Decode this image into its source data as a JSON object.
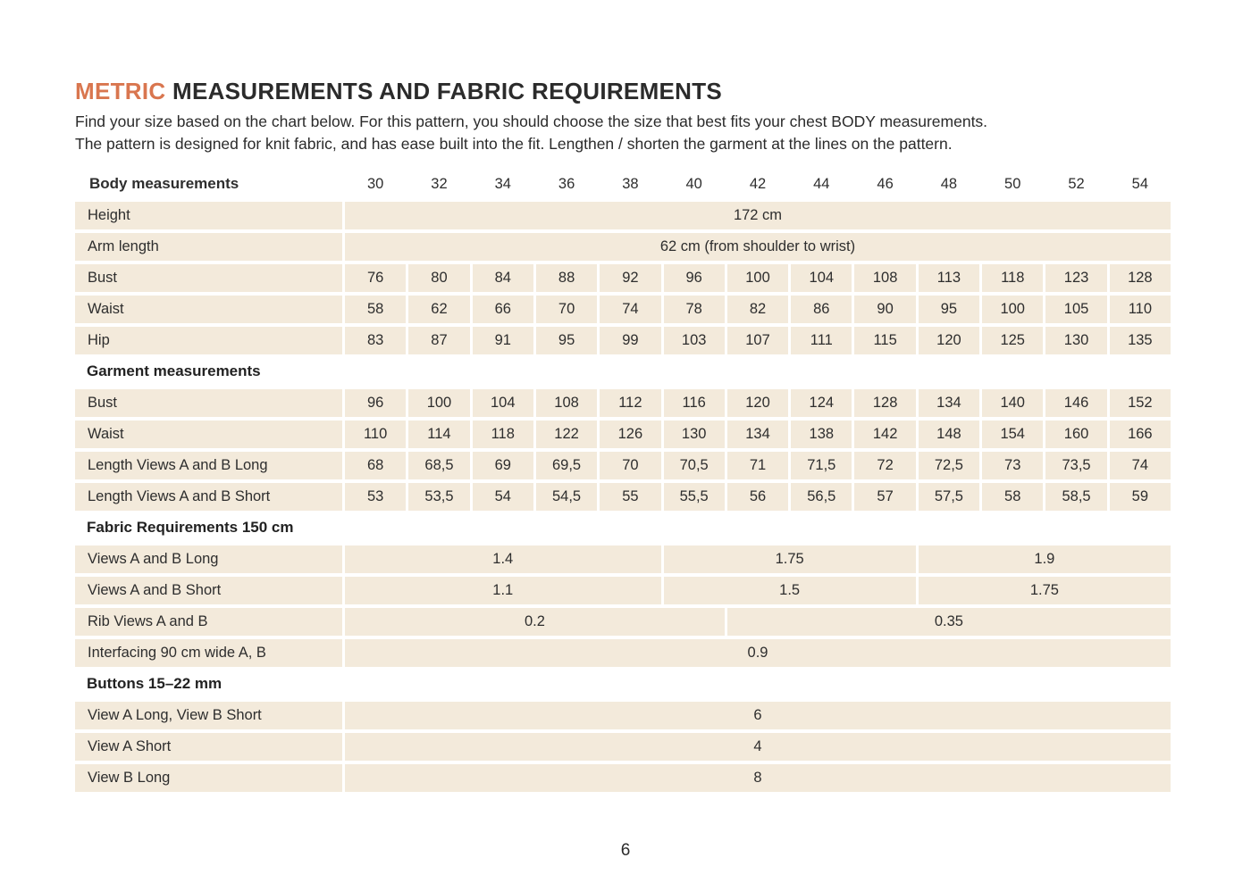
{
  "page": {
    "title_accent": "METRIC",
    "title_rest": " MEASUREMENTS AND FABRIC REQUIREMENTS",
    "intro_line1": "Find your size based on the chart below. For this pattern, you should choose the size that best fits your chest BODY measurements.",
    "intro_line2": "The pattern is designed for knit fabric, and has ease built into the fit. Lengthen / shorten the garment at the lines on the pattern.",
    "page_number": "6"
  },
  "colors": {
    "accent_orange": "#D9764F",
    "cell_beige": "#F3EADB",
    "text_dark": "#2D2D2D"
  },
  "table": {
    "sizes_header_label": "Body measurements",
    "sizes": [
      "30",
      "32",
      "34",
      "36",
      "38",
      "40",
      "42",
      "44",
      "46",
      "48",
      "50",
      "52",
      "54"
    ],
    "rows": [
      {
        "type": "span",
        "label": "Height",
        "cells": [
          {
            "text": "172 cm",
            "span": 13
          }
        ]
      },
      {
        "type": "span",
        "label": "Arm length",
        "cells": [
          {
            "text": "62 cm (from shoulder to wrist)",
            "span": 13
          }
        ]
      },
      {
        "type": "values",
        "label": "Bust",
        "values": [
          "76",
          "80",
          "84",
          "88",
          "92",
          "96",
          "100",
          "104",
          "108",
          "113",
          "118",
          "123",
          "128"
        ]
      },
      {
        "type": "values",
        "label": "Waist",
        "values": [
          "58",
          "62",
          "66",
          "70",
          "74",
          "78",
          "82",
          "86",
          "90",
          "95",
          "100",
          "105",
          "110"
        ]
      },
      {
        "type": "values",
        "label": "Hip",
        "values": [
          "83",
          "87",
          "91",
          "95",
          "99",
          "103",
          "107",
          "111",
          "115",
          "120",
          "125",
          "130",
          "135"
        ]
      },
      {
        "type": "section",
        "label": "Garment measurements"
      },
      {
        "type": "values",
        "label": "Bust",
        "values": [
          "96",
          "100",
          "104",
          "108",
          "112",
          "116",
          "120",
          "124",
          "128",
          "134",
          "140",
          "146",
          "152"
        ]
      },
      {
        "type": "values",
        "label": "Waist",
        "values": [
          "110",
          "114",
          "118",
          "122",
          "126",
          "130",
          "134",
          "138",
          "142",
          "148",
          "154",
          "160",
          "166"
        ]
      },
      {
        "type": "values",
        "label": "Length Views A and B Long",
        "values": [
          "68",
          "68,5",
          "69",
          "69,5",
          "70",
          "70,5",
          "71",
          "71,5",
          "72",
          "72,5",
          "73",
          "73,5",
          "74"
        ]
      },
      {
        "type": "values",
        "label": "Length Views A and B Short",
        "values": [
          "53",
          "53,5",
          "54",
          "54,5",
          "55",
          "55,5",
          "56",
          "56,5",
          "57",
          "57,5",
          "58",
          "58,5",
          "59"
        ]
      },
      {
        "type": "section",
        "label": "Fabric Requirements 150 cm"
      },
      {
        "type": "span",
        "label": "Views A and B Long",
        "cells": [
          {
            "text": "1.4",
            "span": 5
          },
          {
            "text": "1.75",
            "span": 4
          },
          {
            "text": "1.9",
            "span": 4
          }
        ]
      },
      {
        "type": "span",
        "label": "Views A and B Short",
        "cells": [
          {
            "text": "1.1",
            "span": 5
          },
          {
            "text": "1.5",
            "span": 4
          },
          {
            "text": "1.75",
            "span": 4
          }
        ]
      },
      {
        "type": "span",
        "label": "Rib Views A and B",
        "cells": [
          {
            "text": "0.2",
            "span": 6
          },
          {
            "text": "0.35",
            "span": 7
          }
        ]
      },
      {
        "type": "span",
        "label": "Interfacing 90 cm wide A, B",
        "cells": [
          {
            "text": "0.9",
            "span": 13
          }
        ]
      },
      {
        "type": "section",
        "label": "Buttons 15–22 mm"
      },
      {
        "type": "span",
        "label": "View A Long, View B Short",
        "cells": [
          {
            "text": "6",
            "span": 13
          }
        ]
      },
      {
        "type": "span",
        "label": "View A Short",
        "cells": [
          {
            "text": "4",
            "span": 13
          }
        ]
      },
      {
        "type": "span",
        "label": "View B Long",
        "cells": [
          {
            "text": "8",
            "span": 13
          }
        ]
      }
    ]
  }
}
